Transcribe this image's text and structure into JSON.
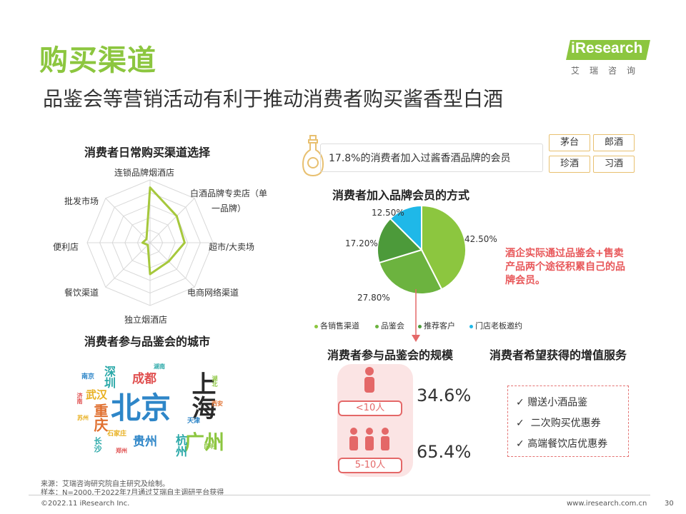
{
  "header": {
    "title": "购买渠道",
    "subtitle": "品鉴会等营销活动有利于推动消费者购买酱香型白酒",
    "logo_text": "iResearch",
    "logo_cn": "艾瑞咨询"
  },
  "radar": {
    "title": "消费者日常购买渠道选择",
    "chart_data": {
      "type": "radar",
      "categories": [
        "连锁品牌烟酒店",
        "白酒品牌专卖店（单一品牌）",
        "超市/大卖场",
        "电商网络渠道",
        "独立烟酒店",
        "餐饮渠道",
        "便利店",
        "批发市场"
      ],
      "values": [
        0.88,
        0.6,
        0.55,
        0.42,
        0.5,
        0.05,
        0.12,
        0.08
      ],
      "ylim": [
        0,
        1
      ]
    },
    "label_0": "连锁品牌烟酒店",
    "label_1a": "白酒品牌专卖店（单",
    "label_1b": "一品牌）",
    "label_2": "超市/大卖场",
    "label_3": "电商网络渠道",
    "label_4": "独立烟酒店",
    "label_5": "餐饮渠道",
    "label_6": "便利店",
    "label_7": "批发市场"
  },
  "cloud": {
    "title": "消费者参与品鉴会的城市",
    "words": [
      {
        "text": "北京",
        "color": "#2e86c8"
      },
      {
        "text": "上海",
        "color": "#2a2a2a"
      },
      {
        "text": "广州",
        "color": "#8cc63f"
      },
      {
        "text": "成都",
        "color": "#e05050"
      },
      {
        "text": "重庆",
        "color": "#e07030"
      },
      {
        "text": "武汉",
        "color": "#e8b020"
      },
      {
        "text": "深圳",
        "color": "#2aa8a8"
      },
      {
        "text": "贵州",
        "color": "#2e86c8"
      },
      {
        "text": "杭州",
        "color": "#2aa8a8"
      },
      {
        "text": "南京",
        "color": "#2e86c8"
      },
      {
        "text": "长沙",
        "color": "#2aa8a8"
      },
      {
        "text": "天津",
        "color": "#2e86c8"
      },
      {
        "text": "石家庄",
        "color": "#e8b020"
      },
      {
        "text": "湖北",
        "color": "#8cc63f"
      },
      {
        "text": "济南",
        "color": "#e05050"
      },
      {
        "text": "西安",
        "color": "#e07030"
      },
      {
        "text": "苏州",
        "color": "#e8b020"
      },
      {
        "text": "湖南",
        "color": "#2aa8a8"
      },
      {
        "text": "昆明",
        "color": "#8cc63f"
      },
      {
        "text": "郑州",
        "color": "#e05050"
      }
    ]
  },
  "membership": {
    "stat_text": "17.8%的消费者加入过酱香酒品牌的会员",
    "brands": [
      "茅台",
      "郎酒",
      "珍酒",
      "习酒"
    ],
    "pie_title": "消费者加入品牌会员的方式",
    "chart_data": {
      "type": "pie",
      "categories": [
        "各销售渠道",
        "品鉴会",
        "推荐客户",
        "门店老板邀约"
      ],
      "values": [
        42.5,
        27.8,
        17.2,
        12.5
      ],
      "colors": [
        "#8cc63f",
        "#6cb33f",
        "#4c9a3a",
        "#1fb8e8"
      ],
      "labels": [
        "42.50%",
        "27.80%",
        "17.20%",
        "12.50%"
      ]
    },
    "note": "酒企实际通过品鉴会+售卖产品两个途径积累自己的品牌会员。"
  },
  "scale": {
    "title": "消费者参与品鉴会的规模",
    "rows": [
      {
        "label": "<10人",
        "pct": "34.6%"
      },
      {
        "label": "5-10人",
        "pct": "65.4%"
      }
    ]
  },
  "services": {
    "title": "消费者希望获得的增值服务",
    "items": [
      "赠送小酒品鉴",
      "二次购买优惠券",
      "高端餐饮店优惠券"
    ],
    "check": "✓"
  },
  "footer": {
    "source": "来源：艾瑞咨询研究院自主研究及绘制。",
    "sample": "样本：N=2000,于2022年7月通过艾瑞自主调研平台获得",
    "copyright": "©2022.11 iResearch Inc.",
    "url": "www.iresearch.com.cn",
    "page": "30"
  }
}
